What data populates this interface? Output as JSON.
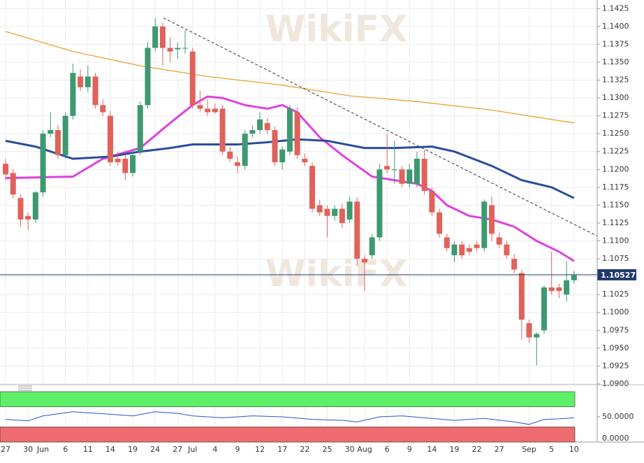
{
  "chart_data": {
    "type": "candlestick",
    "watermark": "WikiFX",
    "categories": [
      "27",
      null,
      null,
      "30",
      null,
      "Jun",
      null,
      null,
      "6",
      null,
      null,
      "11",
      null,
      null,
      "14",
      null,
      null,
      "19",
      null,
      null,
      "24",
      null,
      null,
      "27",
      null,
      "Jul",
      null,
      null,
      "4",
      null,
      null,
      "9",
      null,
      null,
      "12",
      null,
      null,
      "17",
      null,
      null,
      "22",
      null,
      null,
      "25",
      null,
      null,
      "30",
      null,
      "Aug",
      null,
      null,
      "6",
      null,
      null,
      "9",
      null,
      null,
      "14",
      null,
      null,
      "19",
      null,
      null,
      "22",
      null,
      null,
      "27",
      null,
      null,
      null,
      "Sep",
      null,
      null,
      "5",
      null,
      null,
      "10"
    ],
    "open": [
      1.1208,
      1.1195,
      1.116,
      1.1135,
      1.113,
      1.1168,
      1.125,
      1.1255,
      1.122,
      1.1275,
      1.133,
      1.1315,
      1.133,
      1.129,
      1.1275,
      1.1215,
      1.1215,
      1.1195,
      1.1225,
      1.129,
      1.137,
      1.14,
      1.137,
      1.1368,
      1.137,
      1.1365,
      1.129,
      1.1285,
      1.1285,
      1.1285,
      1.1225,
      1.121,
      1.1205,
      1.125,
      1.1255,
      1.1265,
      1.1255,
      1.121,
      1.1225,
      1.128,
      1.1215,
      1.1205,
      1.115,
      1.1145,
      1.1135,
      1.1145,
      1.113,
      1.1155,
      1.1075,
      1.108,
      1.1105,
      1.1205,
      1.12,
      1.12,
      1.118,
      1.118,
      1.1215,
      1.117,
      1.114,
      1.1105,
      1.108,
      1.1095,
      1.109,
      1.1095,
      1.109,
      1.115,
      1.1105,
      1.1095,
      1.1075,
      1.1055,
      1.0985,
      1.0965,
      1.0975,
      1.1035,
      1.1035,
      1.1025,
      1.1045
    ],
    "high": [
      1.1215,
      1.12,
      1.1165,
      1.114,
      1.117,
      1.1255,
      1.128,
      1.1262,
      1.128,
      1.1348,
      1.134,
      1.1345,
      1.1335,
      1.1298,
      1.1282,
      1.1225,
      1.122,
      1.1228,
      1.1295,
      1.1378,
      1.1412,
      1.1405,
      1.1385,
      1.1378,
      1.1395,
      1.137,
      1.131,
      1.1298,
      1.1292,
      1.129,
      1.1232,
      1.1218,
      1.1255,
      1.1262,
      1.128,
      1.1272,
      1.126,
      1.1232,
      1.129,
      1.1287,
      1.1222,
      1.121,
      1.1158,
      1.115,
      1.115,
      1.1152,
      1.1162,
      1.116,
      1.108,
      1.111,
      1.1208,
      1.125,
      1.124,
      1.1205,
      1.1208,
      1.1225,
      1.1228,
      1.1175,
      1.1145,
      1.111,
      1.11,
      1.11,
      1.1095,
      1.11,
      1.1158,
      1.1162,
      1.1112,
      1.11,
      1.1082,
      1.106,
      1.099,
      1.0972,
      1.1038,
      1.1085,
      1.104,
      1.1072,
      1.1058
    ],
    "low": [
      1.1185,
      1.116,
      1.112,
      1.1115,
      1.1125,
      1.1162,
      1.1245,
      1.1215,
      1.1215,
      1.127,
      1.131,
      1.1308,
      1.1285,
      1.1275,
      1.1205,
      1.1205,
      1.1185,
      1.119,
      1.122,
      1.1285,
      1.1365,
      1.1345,
      1.135,
      1.1355,
      1.1362,
      1.1285,
      1.128,
      1.1275,
      1.1278,
      1.122,
      1.121,
      1.1195,
      1.12,
      1.1245,
      1.125,
      1.125,
      1.1205,
      1.12,
      1.122,
      1.1215,
      1.1205,
      1.114,
      1.1135,
      1.1105,
      1.1128,
      1.1118,
      1.1125,
      1.1065,
      1.103,
      1.1075,
      1.11,
      1.1195,
      1.118,
      1.1175,
      1.1175,
      1.1175,
      1.1165,
      1.1135,
      1.1105,
      1.1085,
      1.107,
      1.1075,
      1.108,
      1.1085,
      1.1085,
      1.11,
      1.109,
      1.1075,
      1.1055,
      1.0962,
      1.0958,
      1.0926,
      1.097,
      1.1025,
      1.102,
      1.1015,
      1.104
    ],
    "close": [
      1.1193,
      1.1165,
      1.113,
      1.113,
      1.1168,
      1.125,
      1.1255,
      1.122,
      1.1275,
      1.1335,
      1.1315,
      1.133,
      1.129,
      1.128,
      1.121,
      1.121,
      1.1195,
      1.122,
      1.129,
      1.137,
      1.14,
      1.137,
      1.1365,
      1.137,
      1.137,
      1.129,
      1.1285,
      1.128,
      1.128,
      1.1225,
      1.1215,
      1.1205,
      1.125,
      1.1255,
      1.127,
      1.1255,
      1.121,
      1.1228,
      1.1285,
      1.122,
      1.121,
      1.1145,
      1.114,
      1.1135,
      1.1145,
      1.1125,
      1.1155,
      1.1075,
      1.107,
      1.1105,
      1.12,
      1.12,
      1.12,
      1.118,
      1.12,
      1.1215,
      1.117,
      1.114,
      1.111,
      1.109,
      1.1095,
      1.108,
      1.1085,
      1.109,
      1.1155,
      1.111,
      1.1095,
      1.108,
      1.106,
      1.099,
      1.0965,
      1.097,
      1.1035,
      1.103,
      1.103,
      1.1045,
      1.1052
    ],
    "up_color": "#3d9970",
    "down_color": "#e0625a",
    "lines": [
      {
        "color": "#e040e0",
        "x": [
          0,
          9,
          13,
          18,
          22,
          25,
          27,
          29,
          32,
          35,
          37,
          39,
          42,
          45,
          47,
          49,
          52,
          55,
          57,
          59,
          62,
          65,
          68,
          71,
          74,
          76
        ],
        "values": [
          1.1188,
          1.119,
          1.1215,
          1.123,
          1.1265,
          1.129,
          1.1302,
          1.13,
          1.129,
          1.1285,
          1.129,
          1.128,
          1.1245,
          1.122,
          1.1205,
          1.119,
          1.1185,
          1.118,
          1.117,
          1.115,
          1.1135,
          1.113,
          1.112,
          1.11,
          1.1085,
          1.1072
        ]
      },
      {
        "color": "#2a4d9c",
        "x": [
          0,
          4,
          9,
          14,
          18,
          22,
          25,
          31,
          35,
          39,
          43,
          48,
          52,
          57,
          60,
          65,
          69,
          73,
          76
        ],
        "values": [
          1.124,
          1.1232,
          1.1215,
          1.1218,
          1.1225,
          1.123,
          1.1235,
          1.1235,
          1.1238,
          1.1242,
          1.124,
          1.123,
          1.123,
          1.1232,
          1.1225,
          1.1205,
          1.1185,
          1.1175,
          1.116
        ]
      },
      {
        "color": "#f0a030",
        "x": [
          0,
          9,
          18,
          27,
          37,
          46,
          55,
          65,
          76
        ],
        "values": [
          1.1393,
          1.1365,
          1.1345,
          1.133,
          1.1318,
          1.1303,
          1.1295,
          1.1283,
          1.1265
        ]
      }
    ],
    "trendline": {
      "x": [
        21.1,
        79.1
      ],
      "values": [
        1.1412,
        1.1107
      ]
    },
    "last_price": {
      "value": 1.10527,
      "label": "1.10527"
    },
    "xlim": [
      -0.75,
      79.1
    ],
    "ylim": [
      1.0899,
      1.1437
    ],
    "yticks": [
      {
        "value": 1.09,
        "label": "1.0900"
      },
      {
        "value": 1.0925,
        "label": "1.0925"
      },
      {
        "value": 1.095,
        "label": "1.0950"
      },
      {
        "value": 1.0975,
        "label": "1.0975"
      },
      {
        "value": 1.1,
        "label": "1.1000"
      },
      {
        "value": 1.1025,
        "label": "1.1025"
      },
      {
        "value": 1.105,
        "label": "1.1050"
      },
      {
        "value": 1.1075,
        "label": "1.1075"
      },
      {
        "value": 1.11,
        "label": "1.1100"
      },
      {
        "value": 1.1125,
        "label": "1.1125"
      },
      {
        "value": 1.115,
        "label": "1.1150"
      },
      {
        "value": 1.1175,
        "label": "1.1175"
      },
      {
        "value": 1.12,
        "label": "1.1200"
      },
      {
        "value": 1.1225,
        "label": "1.1225"
      },
      {
        "value": 1.125,
        "label": "1.1250"
      },
      {
        "value": 1.1275,
        "label": "1.1275"
      },
      {
        "value": 1.13,
        "label": "1.1300"
      },
      {
        "value": 1.1325,
        "label": "1.1325"
      },
      {
        "value": 1.135,
        "label": "1.1350"
      },
      {
        "value": 1.1375,
        "label": "1.1375"
      },
      {
        "value": 1.14,
        "label": "1.1400"
      },
      {
        "value": 1.1425,
        "label": "1.1425"
      }
    ],
    "grid": true,
    "oscillator": {
      "color": "#3050d0",
      "x": [
        0,
        3,
        5,
        9,
        11,
        14,
        17,
        20,
        23,
        25,
        29,
        33,
        37,
        41,
        45,
        47,
        50,
        53,
        56,
        60,
        64,
        68,
        70,
        72,
        74,
        76
      ],
      "values": [
        45,
        42,
        52,
        60,
        58,
        55,
        52,
        60,
        57,
        52,
        48,
        52,
        50,
        45,
        43,
        40,
        50,
        52,
        48,
        43,
        47,
        40,
        35,
        45,
        46,
        48
      ],
      "ylim": [
        0,
        100
      ],
      "yticks": [
        {
          "value": 50,
          "label": "50.0000"
        },
        {
          "value": 0,
          "label": "0.0000"
        }
      ],
      "overbought": [
        70,
        100
      ],
      "overbought_color": "#5ff06a",
      "oversold": [
        0,
        30
      ],
      "oversold_color": "#ee6b70"
    }
  }
}
